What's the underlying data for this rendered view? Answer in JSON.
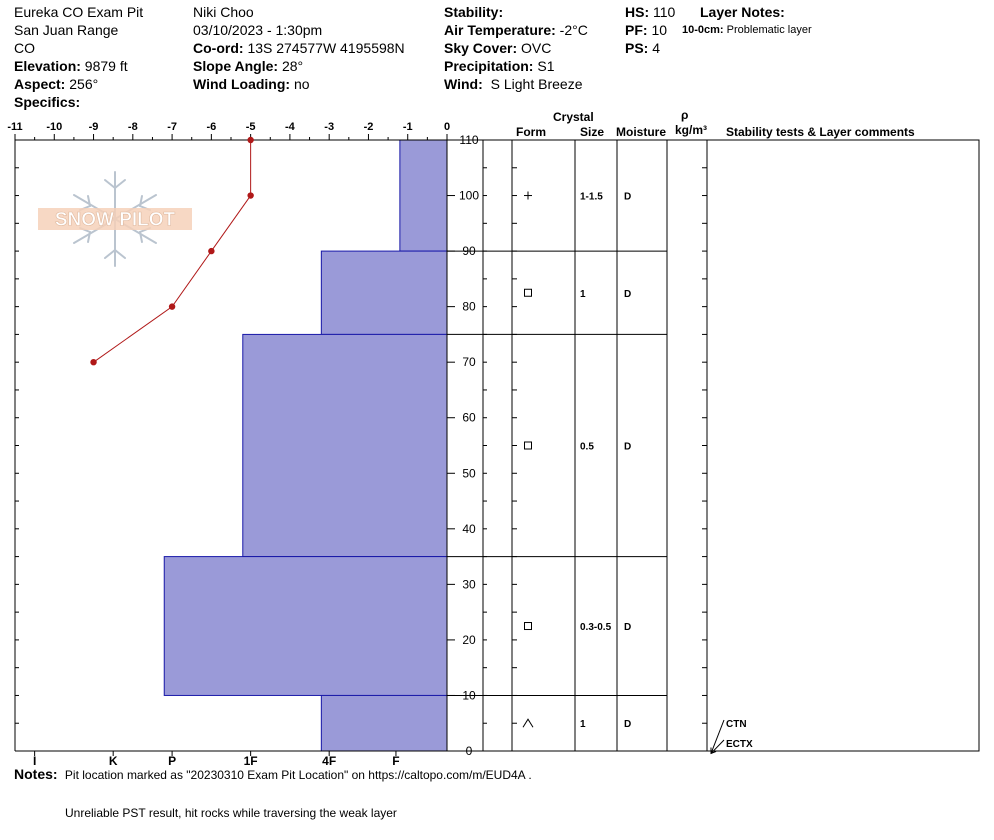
{
  "header": {
    "col1": {
      "site": "Eureka CO Exam Pit",
      "range": "San Juan Range",
      "state": "CO",
      "elevation_label": "Elevation:",
      "elevation_value": "9879 ft",
      "aspect_label": "Aspect:",
      "aspect_value": "256°",
      "specifics_label": "Specifics:"
    },
    "col2": {
      "observer": "Niki Choo",
      "datetime": "03/10/2023 - 1:30pm",
      "coord_label": "Co-ord:",
      "coord_value": "13S 274577W 4195598N",
      "slope_label": "Slope Angle:",
      "slope_value": "28°",
      "wind_loading_label": "Wind Loading:",
      "wind_loading_value": "no"
    },
    "col3": {
      "stability_label": "Stability:",
      "air_temp_label": "Air Temperature:",
      "air_temp_value": "-2°C",
      "sky_label": "Sky Cover:",
      "sky_value": "OVC",
      "precip_label": "Precipitation:",
      "precip_value": "S1",
      "wind_label": "Wind:",
      "wind_value": "S Light Breeze"
    },
    "col4": {
      "hs_label": "HS:",
      "hs_value": "110",
      "pf_label": "PF:",
      "pf_value": "10",
      "ps_label": "PS:",
      "ps_value": "4"
    },
    "layer_notes": {
      "title": "Layer Notes:",
      "range": "10-0cm:",
      "text": "Problematic layer"
    }
  },
  "table_headers": {
    "crystal": "Crystal",
    "form": "Form",
    "size": "Size",
    "moisture": "Moisture",
    "rho": "ρ",
    "density_unit": "kg/m³",
    "stability": "Stability tests & Layer comments"
  },
  "logo_text": "SNOW PILOT",
  "notes": {
    "label": "Notes:",
    "line1": "Pit location marked as \"20230310 Exam Pit Location\" on https://caltopo.com/m/EUD4A .",
    "line2": "Unreliable PST result, hit rocks while traversing the weak layer"
  },
  "colors": {
    "hardness_fill": "#9a9ad8",
    "hardness_stroke": "#1818a8",
    "temp_line": "#b01818",
    "grid": "#000000"
  },
  "chart_data": {
    "type": "snow-profile",
    "temperature_axis": {
      "ticks": [
        "-11",
        "-10",
        "-9",
        "-8",
        "-7",
        "-6",
        "-5",
        "-4",
        "-3",
        "-2",
        "-1",
        "0"
      ],
      "range": [
        -11,
        0
      ]
    },
    "depth_axis": {
      "ticks": [
        "0",
        "10",
        "20",
        "30",
        "40",
        "50",
        "60",
        "70",
        "80",
        "90",
        "100",
        "110"
      ],
      "range": [
        0,
        110
      ]
    },
    "hardness_axis": {
      "labels": [
        "I",
        "K",
        "P",
        "1F",
        "4F",
        "F"
      ],
      "values": [
        -10.5,
        -8.5,
        -7.0,
        -5.0,
        -3.0,
        -1.3
      ]
    },
    "temperature_profile": [
      {
        "depth": 110,
        "temp": -5
      },
      {
        "depth": 100,
        "temp": -5
      },
      {
        "depth": 90,
        "temp": -6
      },
      {
        "depth": 80,
        "temp": -7
      },
      {
        "depth": 70,
        "temp": -9
      }
    ],
    "hardness_layers": [
      {
        "top": 110,
        "bottom": 90,
        "hardness": "F",
        "hardness_value": -1.2
      },
      {
        "top": 90,
        "bottom": 75,
        "hardness": "4F",
        "hardness_value": -3.2
      },
      {
        "top": 75,
        "bottom": 35,
        "hardness": "1F",
        "hardness_value": -5.2
      },
      {
        "top": 35,
        "bottom": 10,
        "hardness": "P",
        "hardness_value": -7.2
      },
      {
        "top": 10,
        "bottom": 0,
        "hardness": "4F",
        "hardness_value": -3.2
      }
    ],
    "layers": [
      {
        "top": 110,
        "bottom": 90,
        "form": "+",
        "size": "1-1.5",
        "moisture": "D"
      },
      {
        "top": 90,
        "bottom": 75,
        "form": "□",
        "size": "1",
        "moisture": "D"
      },
      {
        "top": 75,
        "bottom": 35,
        "form": "□",
        "size": "0.5",
        "moisture": "D"
      },
      {
        "top": 35,
        "bottom": 10,
        "form": "□",
        "size": "0.3-0.5",
        "moisture": "D"
      },
      {
        "top": 10,
        "bottom": 0,
        "form": "^",
        "size": "1",
        "moisture": "D"
      }
    ],
    "stability_tests": [
      {
        "label": "CTN",
        "depth": 1
      },
      {
        "label": "ECTX",
        "depth": 1
      }
    ]
  }
}
